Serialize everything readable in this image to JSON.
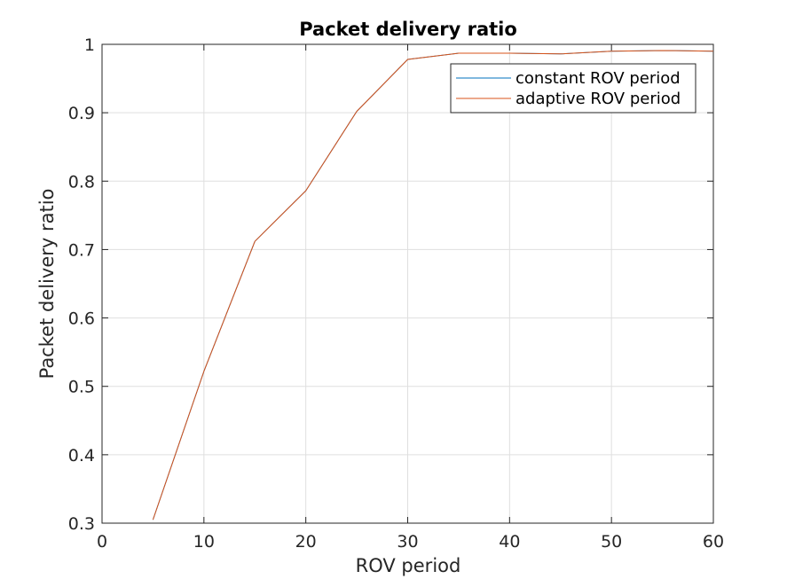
{
  "chart_data": {
    "type": "line",
    "title": "Packet delivery ratio",
    "xlabel": "ROV period",
    "ylabel": "Packet delivery ratio",
    "xlim": [
      0,
      60
    ],
    "ylim": [
      0.3,
      1
    ],
    "xticks": [
      0,
      10,
      20,
      30,
      40,
      50,
      60
    ],
    "yticks": [
      0.3,
      0.4,
      0.5,
      0.6,
      0.7,
      0.8,
      0.9,
      1
    ],
    "grid": true,
    "legend_position": "top-right",
    "series": [
      {
        "name": "constant ROV period",
        "color": "#0072bd",
        "x": [
          5,
          10,
          15,
          20,
          25,
          30,
          35,
          40,
          45,
          50,
          55,
          60
        ],
        "y": [
          0.305,
          0.522,
          0.712,
          0.786,
          0.902,
          0.978,
          0.987,
          0.987,
          0.986,
          0.99,
          0.991,
          0.99
        ]
      },
      {
        "name": "adaptive ROV period",
        "color": "#d95319",
        "x": [
          5,
          10,
          15,
          20,
          25,
          30,
          35,
          40,
          45,
          50,
          55,
          60
        ],
        "y": [
          0.305,
          0.522,
          0.712,
          0.786,
          0.902,
          0.978,
          0.987,
          0.987,
          0.986,
          0.99,
          0.991,
          0.99
        ]
      }
    ]
  }
}
